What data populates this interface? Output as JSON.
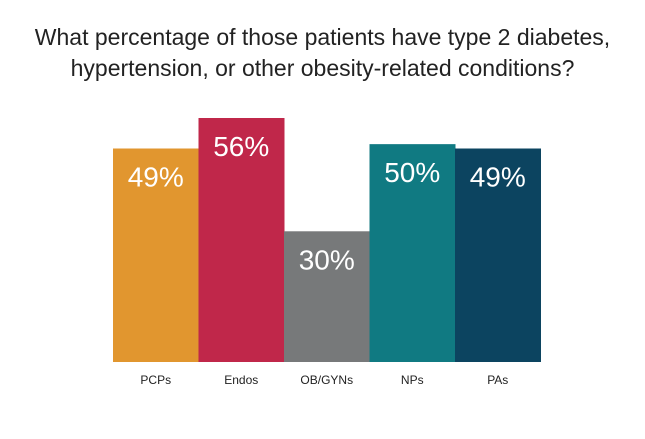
{
  "title_lines": [
    "What percentage of those patients have type 2 diabetes,",
    "hypertension, or other obesity-related conditions?"
  ],
  "chart_data": {
    "type": "bar",
    "title": "What percentage of those patients have type 2 diabetes, hypertension, or other obesity-related conditions?",
    "categories": [
      "PCPs",
      "Endos",
      "OB/GYNs",
      "NPs",
      "PAs"
    ],
    "values": [
      49,
      56,
      30,
      50,
      49
    ],
    "value_labels": [
      "49%",
      "56%",
      "30%",
      "50%",
      "49%"
    ],
    "colors": [
      "#E1962F",
      "#C0274A",
      "#77797A",
      "#107A82",
      "#0C4460"
    ],
    "xlabel": "",
    "ylabel": "",
    "ylim": [
      0,
      56
    ],
    "grid": false,
    "legend": "none"
  }
}
